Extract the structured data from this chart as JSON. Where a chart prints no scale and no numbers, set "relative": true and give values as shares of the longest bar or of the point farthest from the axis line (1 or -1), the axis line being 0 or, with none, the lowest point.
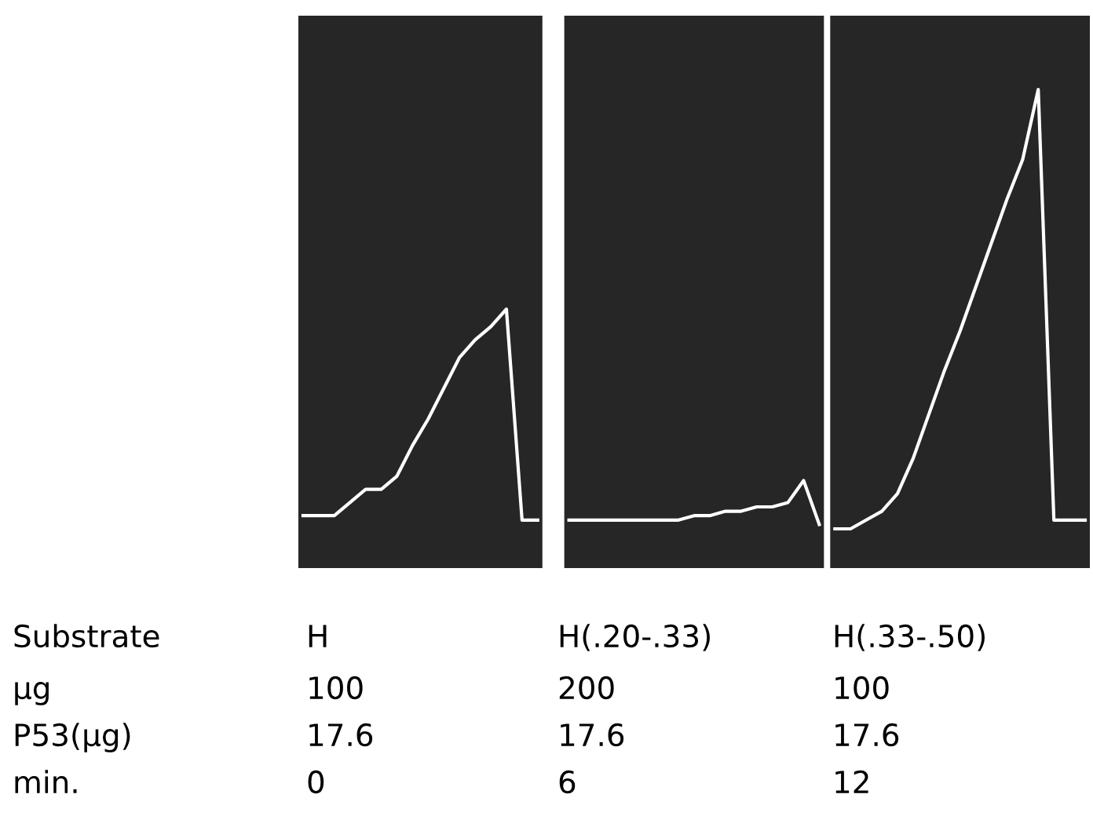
{
  "chart_data": {
    "type": "line",
    "relative": true,
    "legend": false,
    "marker": "none",
    "line_style": "solid",
    "categories": [
      null,
      null,
      null,
      null,
      null,
      null,
      null,
      null,
      null,
      null,
      null,
      null,
      null,
      null,
      null,
      null,
      null,
      null,
      null,
      null,
      null,
      null,
      null,
      null,
      null,
      null,
      null,
      null,
      null,
      null,
      null,
      null,
      null,
      null,
      null,
      null,
      null,
      null,
      null,
      null,
      null,
      null,
      null,
      null,
      null,
      null,
      null,
      null,
      null,
      null,
      null
    ],
    "series": [
      {
        "color": "#ffffff",
        "values": [
          0.03,
          0.03,
          0.03,
          0.06,
          0.09,
          0.09,
          0.12,
          0.19,
          0.25,
          0.32,
          0.39,
          0.43,
          0.46,
          0.5,
          0.02,
          0.02,
          null,
          null,
          null,
          null,
          null,
          null,
          null,
          null,
          null,
          null,
          null,
          null,
          null,
          null,
          null,
          null,
          null,
          null,
          null,
          null,
          null,
          null,
          null,
          null,
          null,
          null,
          null,
          null,
          null,
          null,
          null,
          null,
          null,
          null,
          null
        ]
      },
      {
        "color": "#ffffff",
        "values": [
          null,
          null,
          null,
          null,
          null,
          null,
          null,
          null,
          null,
          null,
          null,
          null,
          null,
          null,
          null,
          null,
          null,
          0.02,
          0.02,
          0.02,
          0.02,
          0.02,
          0.02,
          0.02,
          0.02,
          0.03,
          0.03,
          0.04,
          0.04,
          0.05,
          0.05,
          0.06,
          0.11,
          0.01,
          null,
          null,
          null,
          null,
          null,
          null,
          null,
          null,
          null,
          null,
          null,
          null,
          null,
          null,
          null,
          null,
          null
        ]
      },
      {
        "color": "#ffffff",
        "values": [
          null,
          null,
          null,
          null,
          null,
          null,
          null,
          null,
          null,
          null,
          null,
          null,
          null,
          null,
          null,
          null,
          null,
          null,
          null,
          null,
          null,
          null,
          null,
          null,
          null,
          null,
          null,
          null,
          null,
          null,
          null,
          null,
          null,
          null,
          0,
          0,
          0.02,
          0.04,
          0.08,
          0.16,
          0.26,
          0.36,
          0.45,
          0.55,
          0.65,
          0.75,
          0.84,
          1,
          0.02,
          0.02,
          0.02
        ]
      }
    ],
    "annotations": [
      "Substrate",
      "H",
      "H(.20-.33)",
      "H(.33-.50)",
      "μg",
      "100",
      "200",
      "100",
      "P53(μg)",
      "17.6",
      "17.6",
      "17.6",
      "min.",
      "0",
      "6",
      "12"
    ]
  }
}
